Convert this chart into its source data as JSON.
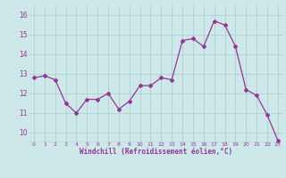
{
  "x": [
    0,
    1,
    2,
    3,
    4,
    5,
    6,
    7,
    8,
    9,
    10,
    11,
    12,
    13,
    14,
    15,
    16,
    17,
    18,
    19,
    20,
    21,
    22,
    23
  ],
  "y": [
    12.8,
    12.9,
    12.7,
    11.5,
    11.0,
    11.7,
    11.7,
    12.0,
    11.2,
    11.6,
    12.4,
    12.4,
    12.8,
    12.7,
    14.7,
    14.8,
    14.4,
    15.7,
    15.5,
    14.4,
    12.2,
    11.9,
    10.9,
    9.6
  ],
  "line_color": "#993399",
  "marker": "D",
  "marker_size": 2.0,
  "bg_color": "#cce8e8",
  "grid_color": "#aacccc",
  "xlabel": "Windchill (Refroidissement éolien,°C)",
  "xlabel_color": "#993399",
  "tick_color": "#993399",
  "xlim": [
    -0.5,
    23.5
  ],
  "ylim": [
    9.5,
    16.5
  ],
  "yticks": [
    10,
    11,
    12,
    13,
    14,
    15,
    16
  ],
  "xticks": [
    0,
    1,
    2,
    3,
    4,
    5,
    6,
    7,
    8,
    9,
    10,
    11,
    12,
    13,
    14,
    15,
    16,
    17,
    18,
    19,
    20,
    21,
    22,
    23
  ]
}
